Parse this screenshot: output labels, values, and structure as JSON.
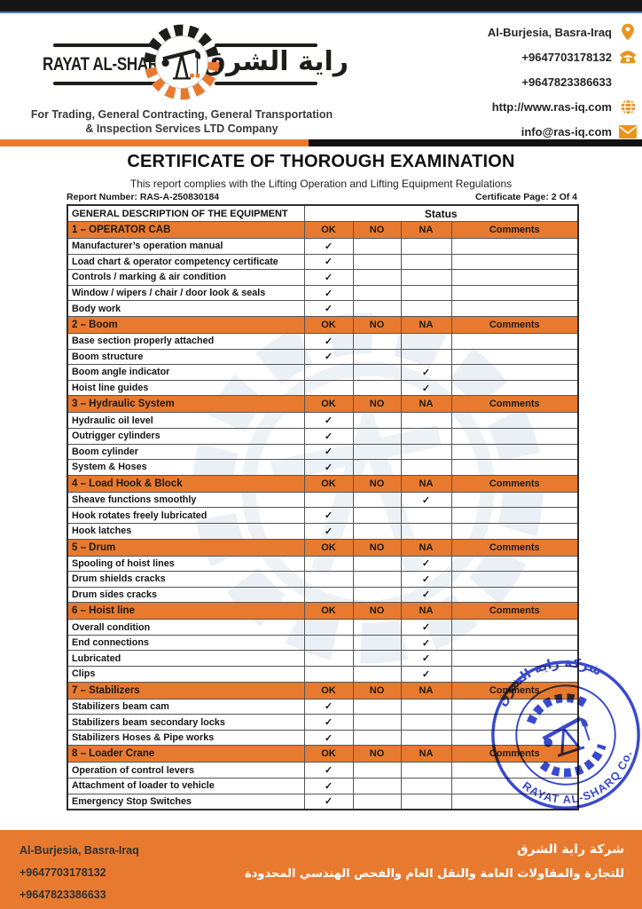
{
  "header": {
    "logo": {
      "name_en": "RAYAT AL-SHARQ",
      "name_ar": "راية الشرق",
      "tagline_line1": "For Trading, General Contracting, General Transportation",
      "tagline_line2": "& Inspection Services LTD Company"
    },
    "contacts": [
      {
        "text": "Al-Burjesia, Basra-Iraq",
        "icon": "location-pin-icon"
      },
      {
        "text": "+9647703178132",
        "icon": "phone-icon"
      },
      {
        "text": "+9647823386633",
        "icon": ""
      },
      {
        "text": "http://www.ras-iq.com",
        "icon": "globe-icon"
      },
      {
        "text": "info@ras-iq.com",
        "icon": "envelope-icon"
      }
    ]
  },
  "title": "CERTIFICATE OF THOROUGH EXAMINATION",
  "subtitle": "This report complies with the Lifting Operation and Lifting Equipment Regulations",
  "report_number_label": "Report Number: RAS-A-250830184",
  "certificate_page_label": "Certificate Page: 2 Of 4",
  "table": {
    "description_header": "GENERAL DESCRIPTION OF THE EQUIPMENT",
    "status_header": "Status",
    "columns": [
      "OK",
      "NO",
      "NA",
      "Comments"
    ],
    "check_glyph": "✓",
    "sections": [
      {
        "title": "1 – OPERATOR CAB",
        "rows": [
          {
            "label": "Manufacturer’s operation manual",
            "check": "OK"
          },
          {
            "label": "Load chart & operator competency certificate",
            "check": "OK"
          },
          {
            "label": "Controls / marking & air condition",
            "check": "OK"
          },
          {
            "label": "Window / wipers / chair / door look & seals",
            "check": "OK"
          },
          {
            "label": "Body work",
            "check": "OK"
          }
        ]
      },
      {
        "title": "2 – Boom",
        "rows": [
          {
            "label": "Base section properly attached",
            "check": "OK"
          },
          {
            "label": "Boom structure",
            "check": "OK"
          },
          {
            "label": "Boom angle indicator",
            "check": "NA"
          },
          {
            "label": "Hoist line guides",
            "check": "NA"
          }
        ]
      },
      {
        "title": "3 – Hydraulic System",
        "rows": [
          {
            "label": "Hydraulic oil level",
            "check": "OK"
          },
          {
            "label": "Outrigger cylinders",
            "check": "OK"
          },
          {
            "label": "Boom cylinder",
            "check": "OK"
          },
          {
            "label": "System & Hoses",
            "check": "OK"
          }
        ]
      },
      {
        "title": "4 – Load Hook & Block",
        "rows": [
          {
            "label": "Sheave functions smoothly",
            "check": "NA"
          },
          {
            "label": "Hook rotates freely lubricated",
            "check": "OK"
          },
          {
            "label": "Hook latches",
            "check": "OK"
          }
        ]
      },
      {
        "title": "5 – Drum",
        "rows": [
          {
            "label": "Spooling of hoist lines",
            "check": "NA"
          },
          {
            "label": "Drum shields cracks",
            "check": "NA"
          },
          {
            "label": "Drum sides cracks",
            "check": "NA"
          }
        ]
      },
      {
        "title": "6 – Hoist line",
        "rows": [
          {
            "label": "Overall condition",
            "check": "NA"
          },
          {
            "label": "End connections",
            "check": "NA"
          },
          {
            "label": "Lubricated",
            "check": "NA"
          },
          {
            "label": "Clips",
            "check": "NA"
          }
        ]
      },
      {
        "title": "7 – Stabilizers",
        "rows": [
          {
            "label": "Stabilizers beam cam",
            "check": "OK"
          },
          {
            "label": "Stabilizers beam secondary locks",
            "check": "OK"
          },
          {
            "label": "Stabilizers Hoses & Pipe works",
            "check": "OK"
          }
        ]
      },
      {
        "title": "8 – Loader Crane",
        "rows": [
          {
            "label": "Operation of control levers",
            "check": "OK"
          },
          {
            "label": "Attachment of loader to vehicle",
            "check": "OK"
          },
          {
            "label": "Emergency Stop Switches",
            "check": "OK"
          }
        ]
      }
    ]
  },
  "stamp": {
    "arabic": "شركة راية الشرق",
    "english": "RAYAT AL-SHARQ Co."
  },
  "footer": {
    "address": "Al-Burjesia, Basra-Iraq",
    "phone1": "+9647703178132",
    "phone2": "+9647823386633",
    "company_ar_line1": "شركة راية الشرق",
    "company_ar_line2": "للتجارة والمقاولات العامة والنقل العام والفحص الهندسي المحدودة"
  },
  "colors": {
    "orange": "#E87A2F",
    "top_bar": "#161616",
    "stamp_blue": "#2336c8",
    "watermark": "#d8e2ee"
  }
}
